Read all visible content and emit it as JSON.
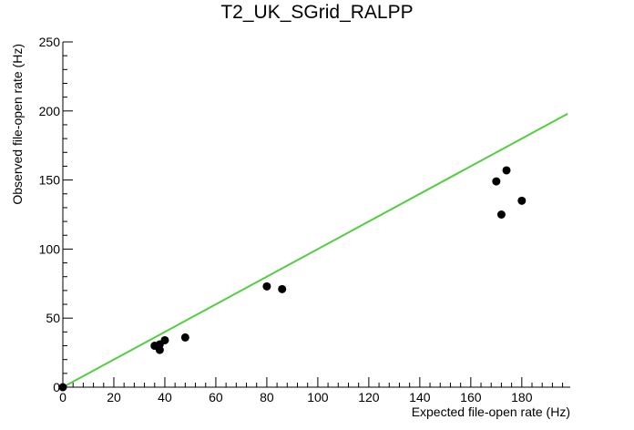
{
  "chart_data": {
    "type": "scatter",
    "title": "T2_UK_SGrid_RALPP",
    "xlabel": "Expected file-open rate (Hz)",
    "ylabel": "Observed file-open rate (Hz)",
    "xlim": [
      0,
      199
    ],
    "ylim": [
      0,
      250
    ],
    "xticks": [
      0,
      20,
      40,
      60,
      80,
      100,
      120,
      140,
      160,
      180
    ],
    "yticks": [
      0,
      50,
      100,
      150,
      200,
      250
    ],
    "grid": false,
    "points": [
      {
        "x": 0,
        "y": 0
      },
      {
        "x": 36,
        "y": 30
      },
      {
        "x": 38,
        "y": 31
      },
      {
        "x": 38,
        "y": 27
      },
      {
        "x": 40,
        "y": 34
      },
      {
        "x": 48,
        "y": 36
      },
      {
        "x": 80,
        "y": 73
      },
      {
        "x": 86,
        "y": 71
      },
      {
        "x": 170,
        "y": 149
      },
      {
        "x": 172,
        "y": 125
      },
      {
        "x": 174,
        "y": 157
      },
      {
        "x": 180,
        "y": 135
      }
    ],
    "reference_line": {
      "x": [
        0,
        198
      ],
      "y": [
        0,
        198
      ],
      "color": "#55cc44"
    },
    "marker_color": "#000000"
  }
}
